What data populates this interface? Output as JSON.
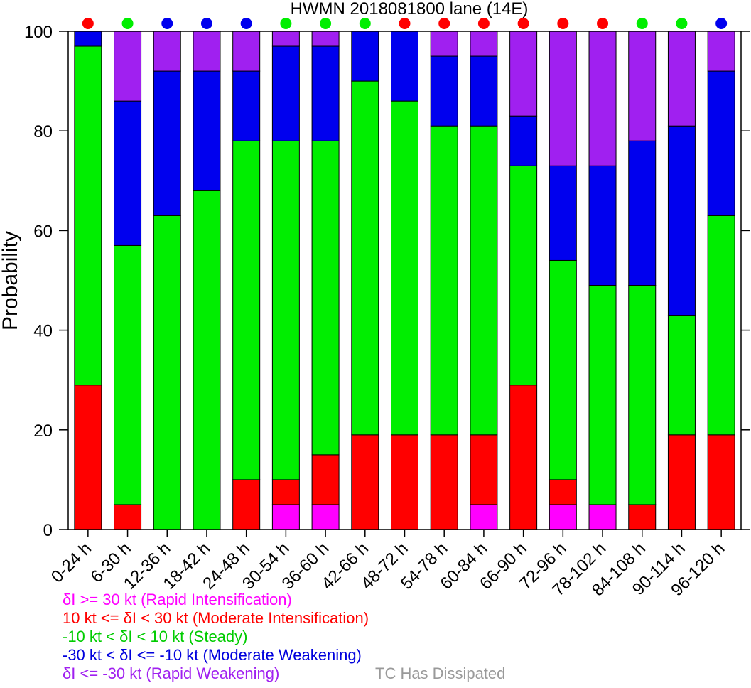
{
  "chart_data": {
    "type": "bar",
    "stacked": true,
    "title": "HWMN 2018081800 lane (14E)",
    "ylabel": "Probability",
    "xlabel": "",
    "ylim": [
      0,
      100
    ],
    "yticks": [
      "0",
      "20",
      "40",
      "60",
      "80",
      "100"
    ],
    "categories": [
      "0-24 h",
      "6-30 h",
      "12-36 h",
      "18-42 h",
      "24-48 h",
      "30-54 h",
      "36-60 h",
      "42-66 h",
      "48-72 h",
      "54-78 h",
      "60-84 h",
      "66-90 h",
      "72-96 h",
      "78-102 h",
      "84-108 h",
      "90-114 h",
      "96-120 h"
    ],
    "series": [
      {
        "name": "δI >= 30 kt (Rapid Intensification)",
        "color": "#ff00ff",
        "values": [
          0,
          0,
          0,
          0,
          0,
          5,
          5,
          0,
          0,
          0,
          5,
          0,
          5,
          5,
          0,
          0,
          0
        ]
      },
      {
        "name": "10 kt <= δI < 30 kt (Moderate Intensification)",
        "color": "#ff0000",
        "values": [
          29,
          5,
          0,
          0,
          10,
          5,
          10,
          19,
          19,
          19,
          14,
          29,
          5,
          0,
          5,
          19,
          19
        ]
      },
      {
        "name": "-10 kt < δI < 10 kt (Steady)",
        "color": "#00ee00",
        "values": [
          68,
          52,
          63,
          68,
          68,
          68,
          63,
          71,
          67,
          62,
          62,
          44,
          44,
          44,
          44,
          24,
          44
        ]
      },
      {
        "name": "-30 kt < δI <= -10 kt (Moderate Weakening)",
        "color": "#0000ee",
        "values": [
          3,
          29,
          29,
          24,
          14,
          19,
          19,
          10,
          14,
          14,
          14,
          10,
          19,
          24,
          29,
          38,
          29
        ]
      },
      {
        "name": "δI <= -30 kt (Rapid Weakening)",
        "color": "#a020f0",
        "values": [
          0,
          14,
          8,
          8,
          8,
          3,
          3,
          0,
          0,
          5,
          5,
          17,
          27,
          27,
          22,
          19,
          8
        ]
      }
    ],
    "top_markers": [
      "red",
      "green",
      "blue",
      "blue",
      "blue",
      "green",
      "green",
      "green",
      "red",
      "red",
      "red",
      "red",
      "red",
      "red",
      "green",
      "green",
      "blue"
    ],
    "marker_colors": {
      "red": "#ff0000",
      "green": "#00ee00",
      "blue": "#0000ee"
    },
    "legend": {
      "position": "bottom-left",
      "items": [
        {
          "label": "δI >= 30 kt (Rapid Intensification)",
          "color": "#ff00ff"
        },
        {
          "label": "10 kt <= δI < 30 kt (Moderate Intensification)",
          "color": "#ff0000"
        },
        {
          "label": "-10 kt < δI < 10 kt (Steady)",
          "color": "#00cc00"
        },
        {
          "label": "-30 kt < δI <= -10 kt (Moderate Weakening)",
          "color": "#0000dd"
        },
        {
          "label": "δI <= -30 kt (Rapid Weakening)",
          "color": "#a020f0"
        }
      ],
      "extra": {
        "label": "TC Has Dissipated",
        "color": "#999999"
      }
    }
  }
}
